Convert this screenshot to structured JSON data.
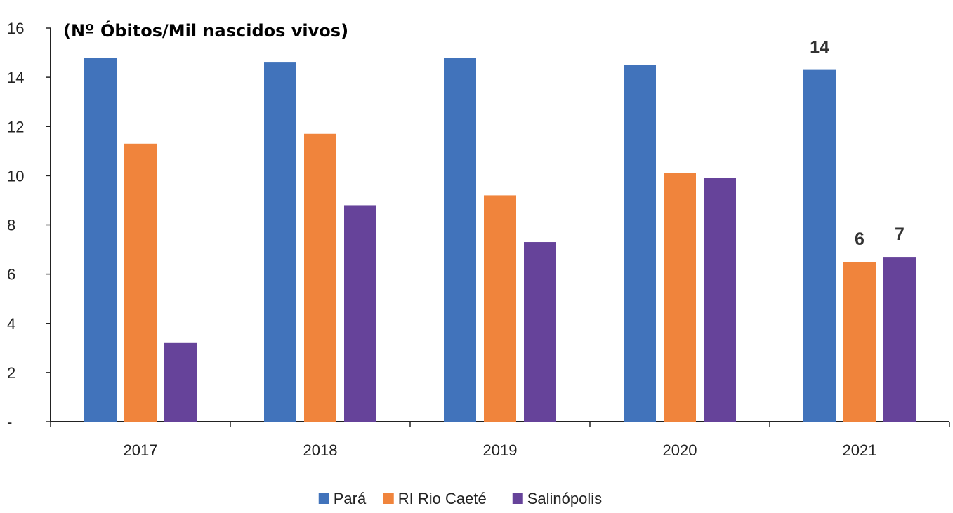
{
  "chart_data": {
    "type": "bar",
    "title": "(Nº Óbitos/Mil nascidos vivos)",
    "xlabel": "",
    "ylabel": "",
    "categories": [
      "2017",
      "2018",
      "2019",
      "2020",
      "2021"
    ],
    "series": [
      {
        "name": "Pará",
        "values": [
          14.8,
          14.6,
          14.8,
          14.5,
          14.3
        ],
        "color": "#4173bb"
      },
      {
        "name": "RI Rio Caeté",
        "values": [
          11.3,
          11.7,
          9.2,
          10.1,
          6.5
        ],
        "color": "#f0843c"
      },
      {
        "name": "Salinópolis",
        "values": [
          3.2,
          8.8,
          7.3,
          9.9,
          6.7
        ],
        "color": "#66439a"
      }
    ],
    "ylim": [
      0,
      16
    ],
    "yticks": [
      0,
      2,
      4,
      6,
      8,
      10,
      12,
      14,
      16
    ],
    "ytick_labels": [
      "-",
      "2",
      "4",
      "6",
      "8",
      "10",
      "12",
      "14",
      "16"
    ],
    "data_labels": [
      {
        "series": 0,
        "category": 4,
        "text": "14"
      },
      {
        "series": 1,
        "category": 4,
        "text": "6"
      },
      {
        "series": 2,
        "category": 4,
        "text": "7"
      }
    ],
    "grid": false,
    "legend_position": "bottom-center"
  }
}
